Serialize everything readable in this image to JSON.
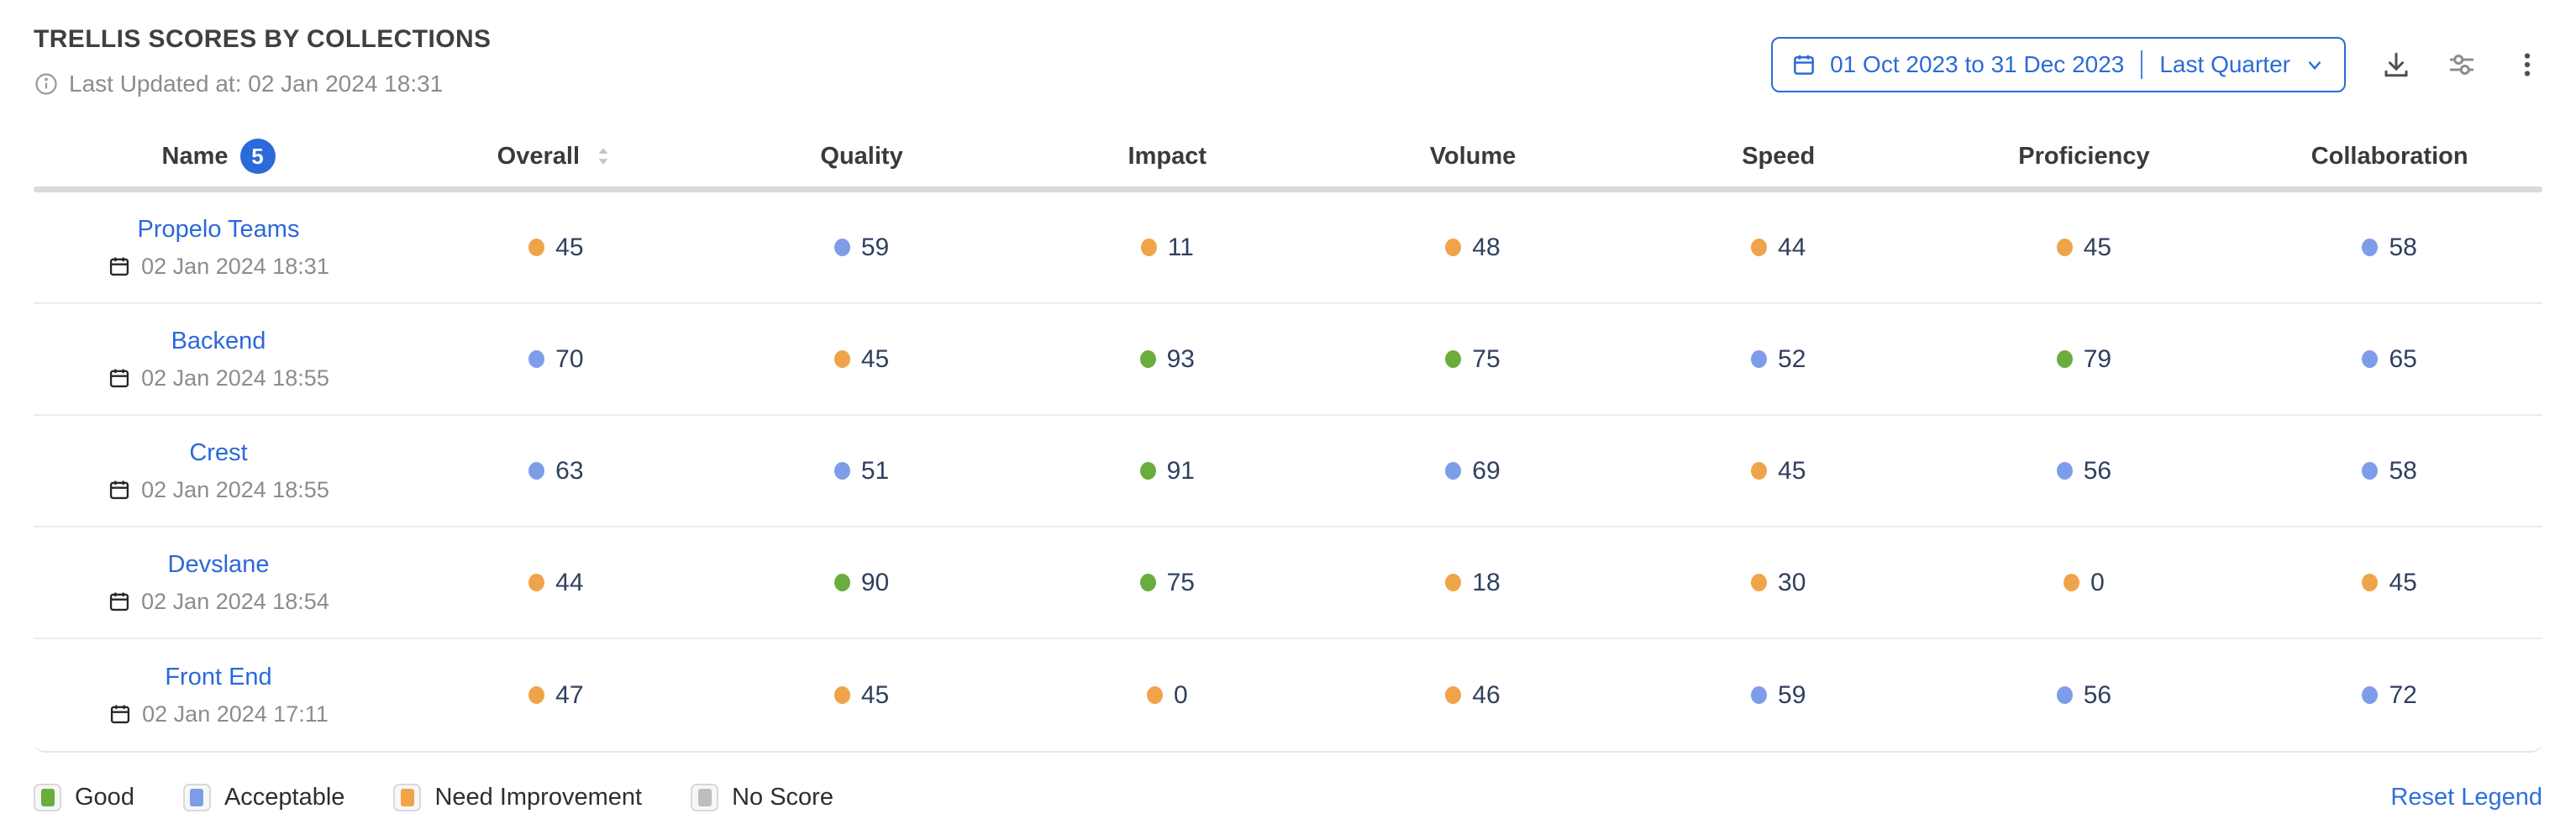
{
  "header": {
    "title": "TRELLIS SCORES BY COLLECTIONS",
    "last_updated": "Last Updated at: 02 Jan 2024 18:31",
    "date_range": {
      "range_label": "01 Oct 2023 to 31 Dec 2023",
      "preset_label": "Last Quarter"
    }
  },
  "table": {
    "name_count": "5",
    "columns": [
      "Name",
      "Overall",
      "Quality",
      "Impact",
      "Volume",
      "Speed",
      "Proficiency",
      "Collaboration"
    ],
    "rows": [
      {
        "name": "Propelo Teams",
        "date": "02 Jan 2024 18:31",
        "scores": [
          {
            "value": "45",
            "level": "need_improvement"
          },
          {
            "value": "59",
            "level": "acceptable"
          },
          {
            "value": "11",
            "level": "need_improvement"
          },
          {
            "value": "48",
            "level": "need_improvement"
          },
          {
            "value": "44",
            "level": "need_improvement"
          },
          {
            "value": "45",
            "level": "need_improvement"
          },
          {
            "value": "58",
            "level": "acceptable"
          }
        ]
      },
      {
        "name": "Backend",
        "date": "02 Jan 2024 18:55",
        "scores": [
          {
            "value": "70",
            "level": "acceptable"
          },
          {
            "value": "45",
            "level": "need_improvement"
          },
          {
            "value": "93",
            "level": "good"
          },
          {
            "value": "75",
            "level": "good"
          },
          {
            "value": "52",
            "level": "acceptable"
          },
          {
            "value": "79",
            "level": "good"
          },
          {
            "value": "65",
            "level": "acceptable"
          }
        ]
      },
      {
        "name": "Crest",
        "date": "02 Jan 2024 18:55",
        "scores": [
          {
            "value": "63",
            "level": "acceptable"
          },
          {
            "value": "51",
            "level": "acceptable"
          },
          {
            "value": "91",
            "level": "good"
          },
          {
            "value": "69",
            "level": "acceptable"
          },
          {
            "value": "45",
            "level": "need_improvement"
          },
          {
            "value": "56",
            "level": "acceptable"
          },
          {
            "value": "58",
            "level": "acceptable"
          }
        ]
      },
      {
        "name": "Devslane",
        "date": "02 Jan 2024 18:54",
        "scores": [
          {
            "value": "44",
            "level": "need_improvement"
          },
          {
            "value": "90",
            "level": "good"
          },
          {
            "value": "75",
            "level": "good"
          },
          {
            "value": "18",
            "level": "need_improvement"
          },
          {
            "value": "30",
            "level": "need_improvement"
          },
          {
            "value": "0",
            "level": "need_improvement"
          },
          {
            "value": "45",
            "level": "need_improvement"
          }
        ]
      },
      {
        "name": "Front End",
        "date": "02 Jan 2024 17:11",
        "scores": [
          {
            "value": "47",
            "level": "need_improvement"
          },
          {
            "value": "45",
            "level": "need_improvement"
          },
          {
            "value": "0",
            "level": "need_improvement"
          },
          {
            "value": "46",
            "level": "need_improvement"
          },
          {
            "value": "59",
            "level": "acceptable"
          },
          {
            "value": "56",
            "level": "acceptable"
          },
          {
            "value": "72",
            "level": "acceptable"
          }
        ]
      }
    ]
  },
  "legend": {
    "items": [
      {
        "label": "Good",
        "level": "good"
      },
      {
        "label": "Acceptable",
        "level": "acceptable"
      },
      {
        "label": "Need Improvement",
        "level": "need_improvement"
      },
      {
        "label": "No Score",
        "level": "no_score"
      }
    ],
    "reset_label": "Reset Legend"
  },
  "colors": {
    "good": "#6aad3e",
    "acceptable": "#7d9de8",
    "need_improvement": "#f0a44a",
    "no_score": "#bdbdbd",
    "link": "#2c68d9",
    "accent": "#2b6bd9"
  }
}
